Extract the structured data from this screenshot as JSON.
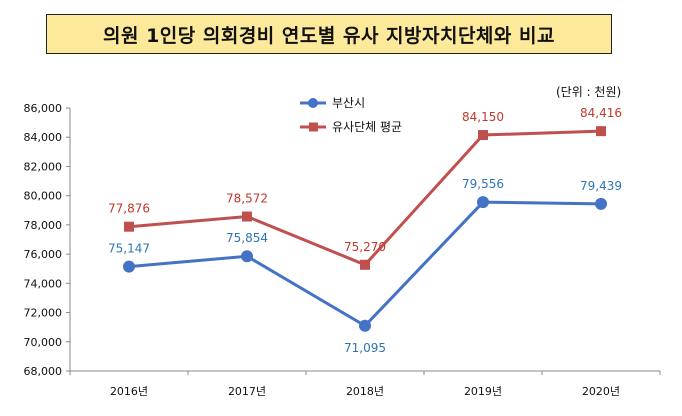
{
  "title": "의원 1인당 의회경비 연도별 유사 지방자치단체와 비교",
  "unit_note": "(단위 : 천원)",
  "chart_data": {
    "type": "line",
    "categories": [
      "2016년",
      "2017년",
      "2018년",
      "2019년",
      "2020년"
    ],
    "series": [
      {
        "name": "부산시",
        "values": [
          75147,
          75854,
          71095,
          79556,
          79439
        ],
        "labels": [
          "75,147",
          "75,854",
          "71,095",
          "79,556",
          "79,439"
        ],
        "color": "#4472c4"
      },
      {
        "name": "유사단체 평균",
        "values": [
          77876,
          78572,
          75270,
          84150,
          84416
        ],
        "labels": [
          "77,876",
          "78,572",
          "75,270",
          "84,150",
          "84,416"
        ],
        "color": "#c0504d"
      }
    ],
    "ylim": [
      68000,
      86000
    ],
    "yticks": [
      "68,000",
      "70,000",
      "72,000",
      "74,000",
      "76,000",
      "78,000",
      "80,000",
      "82,000",
      "84,000",
      "86,000"
    ],
    "label_colors": [
      "#2e75b6",
      "#c0392b"
    ],
    "legend": "top-center",
    "grid": false
  }
}
